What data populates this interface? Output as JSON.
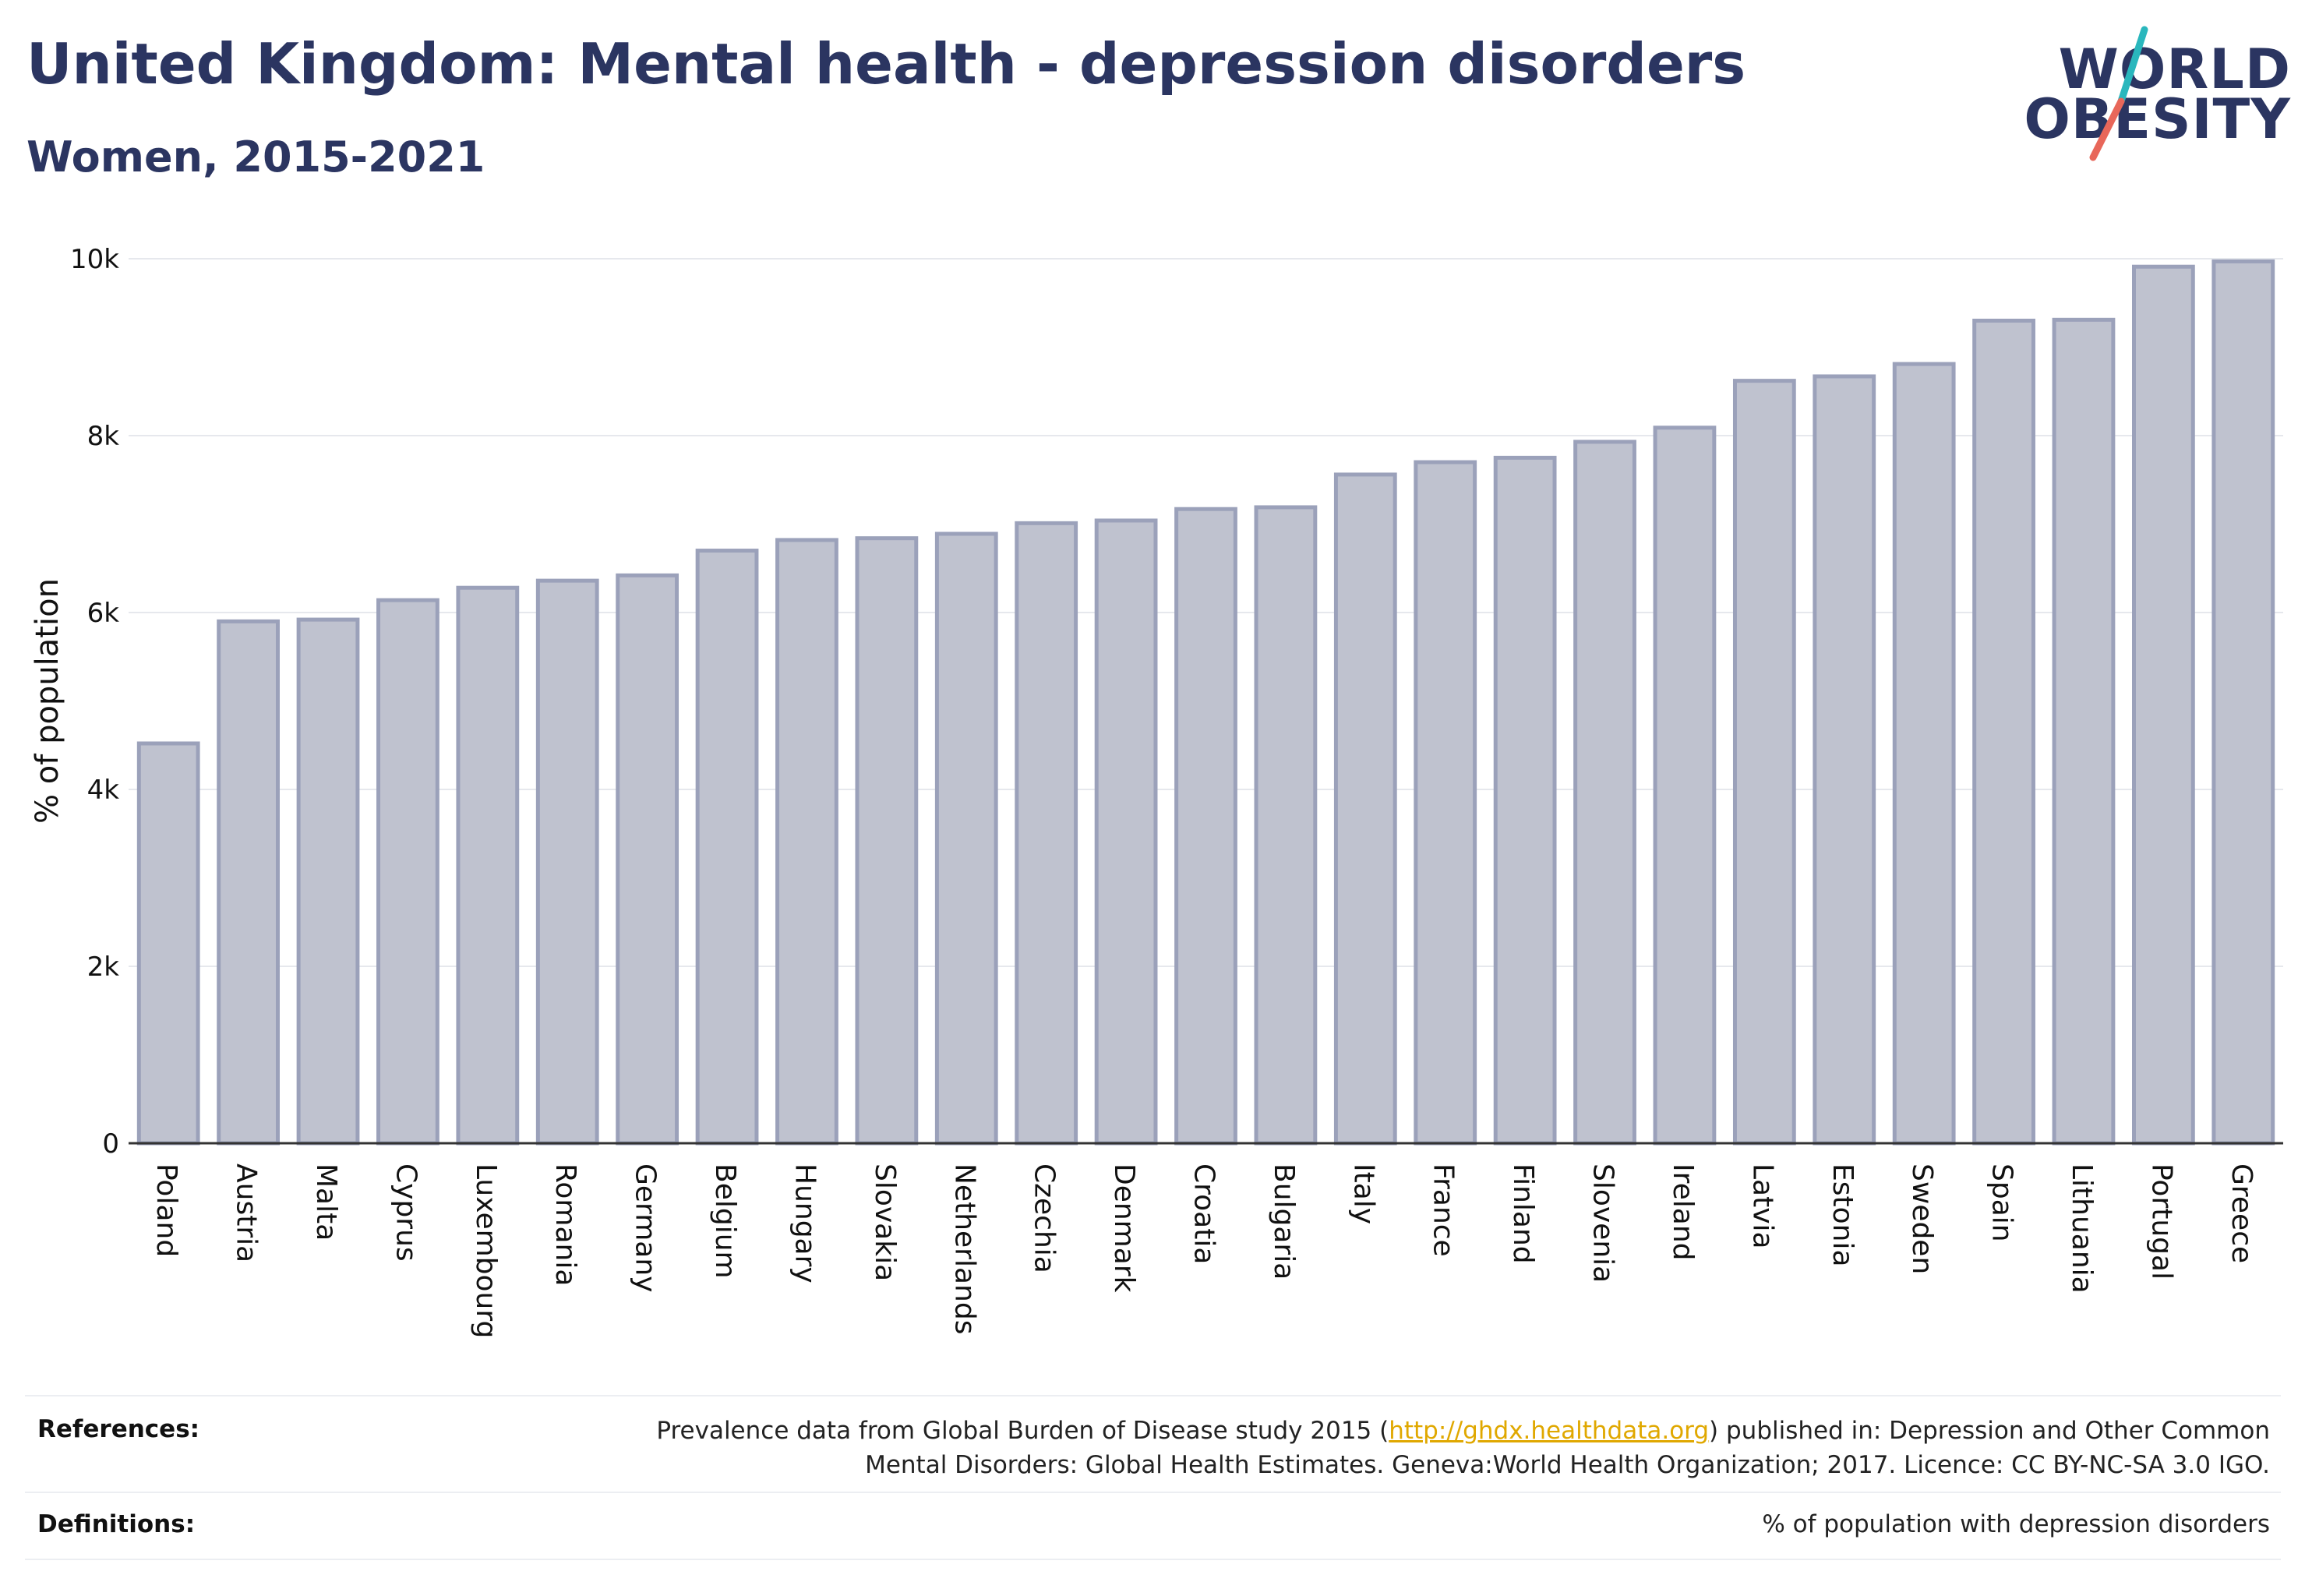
{
  "header": {
    "title": "United Kingdom: Mental health - depression disorders",
    "subtitle": "Women, 2015-2021"
  },
  "logo": {
    "line1": "WORLD",
    "line2": "OBESITY",
    "slash_colors": [
      "#2ab7bd",
      "#e8675a"
    ]
  },
  "chart_data": {
    "type": "bar",
    "categories": [
      "Poland",
      "Austria",
      "Malta",
      "Cyprus",
      "Luxembourg",
      "Romania",
      "Germany",
      "Belgium",
      "Hungary",
      "Slovakia",
      "Netherlands",
      "Czechia",
      "Denmark",
      "Croatia",
      "Bulgaria",
      "Italy",
      "France",
      "Finland",
      "Slovenia",
      "Ireland",
      "Latvia",
      "Estonia",
      "Sweden",
      "Spain",
      "Lithuania",
      "Portugal",
      "Greece"
    ],
    "values": [
      4520,
      5900,
      5920,
      6140,
      6280,
      6360,
      6420,
      6700,
      6820,
      6840,
      6890,
      7010,
      7040,
      7170,
      7190,
      7560,
      7700,
      7750,
      7930,
      8090,
      8620,
      8670,
      8810,
      9300,
      9310,
      9910,
      9970
    ],
    "ylabel": "% of population",
    "ylim": [
      0,
      10000
    ],
    "yticks": [
      0,
      2000,
      4000,
      6000,
      8000,
      10000
    ],
    "ytick_labels": [
      "0",
      "2k",
      "4k",
      "6k",
      "8k",
      "10k"
    ],
    "grid": true,
    "colors": {
      "bar_fill": "#bfc2cf",
      "bar_stroke": "#9ba1ba",
      "grid": "#e6e8ed",
      "axis": "#333333"
    }
  },
  "footer": {
    "references_label": "References:",
    "references_text_1_pre": "Prevalence data from Global Burden of Disease study 2015 (",
    "references_link": "http://ghdx.healthdata.org",
    "references_text_1_post": ") published in: Depression and Other Common",
    "references_text_2": "Mental Disorders: Global Health Estimates. Geneva:World Health Organization; 2017. Licence: CC BY-NC-SA 3.0 IGO.",
    "definitions_label": "Definitions:",
    "definitions_text": "% of population with depression disorders"
  }
}
